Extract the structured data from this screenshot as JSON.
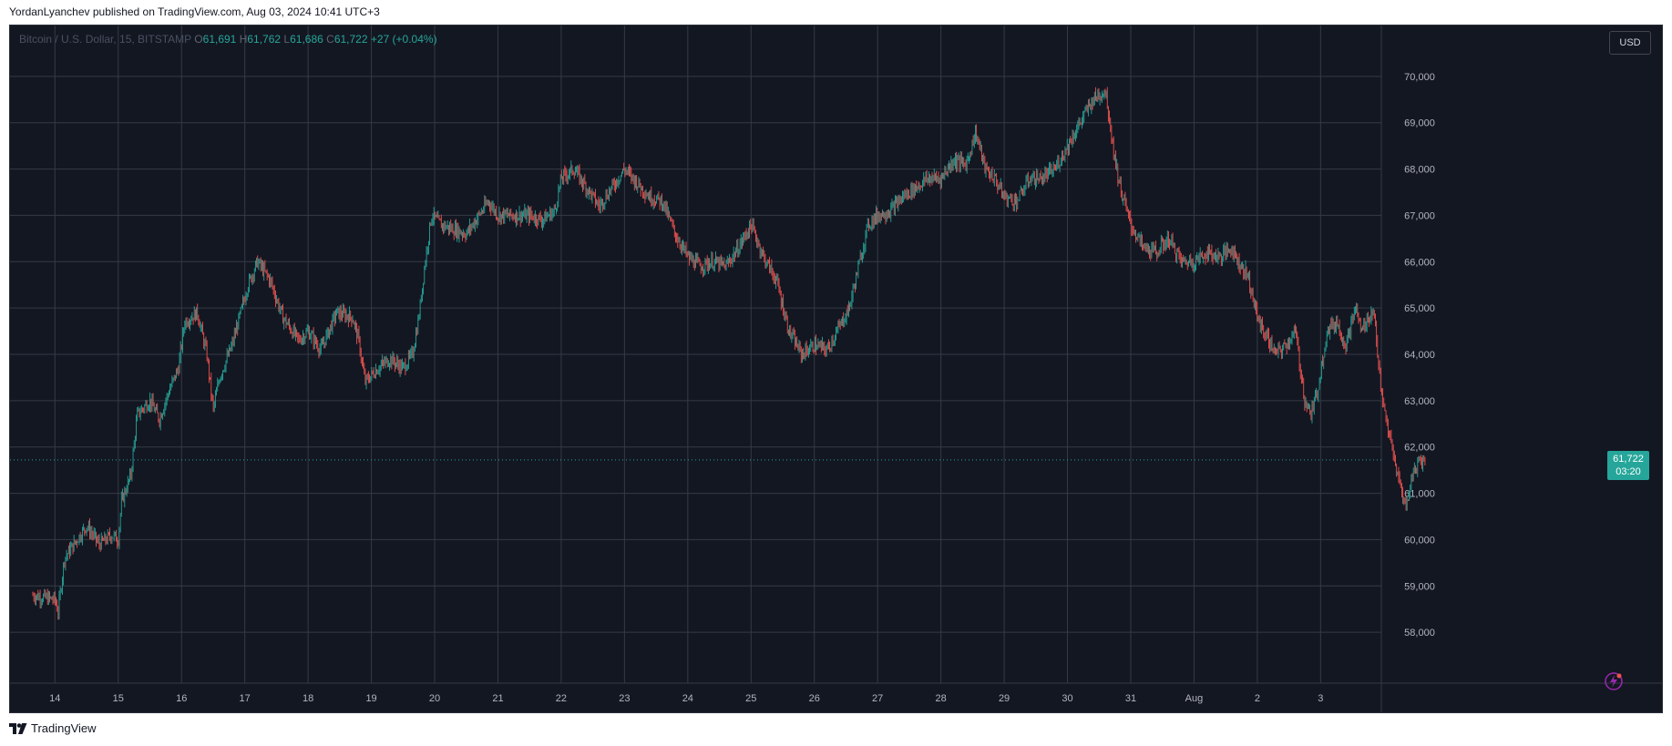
{
  "caption": "YordanLyanchev published on TradingView.com, Aug 03, 2024 10:41 UTC+3",
  "brand": "TradingView",
  "currency_button": "USD",
  "legend": {
    "symbol": "Bitcoin / U.S. Dollar, 15, BITSTAMP",
    "o_label": "O",
    "o": "61,691",
    "h_label": "H",
    "h": "61,762",
    "l_label": "L",
    "l": "61,686",
    "c_label": "C",
    "c": "61,722",
    "change": "+27 (+0.04%)"
  },
  "last_price": {
    "value": "61,722",
    "countdown": "03:20"
  },
  "colors": {
    "background": "#131722",
    "grid": "#363a45",
    "up": "#26a69a",
    "down": "#ef5350",
    "text": "#d1d4dc"
  },
  "icons": [
    "tradingview-logo-icon",
    "lightning-icon"
  ],
  "chart_data": {
    "type": "candlestick",
    "symbol": "Bitcoin / U.S. Dollar",
    "interval": "15",
    "exchange": "BITSTAMP",
    "ylim": [
      57000,
      71000
    ],
    "y_ticks": [
      "58,000",
      "59,000",
      "60,000",
      "61,000",
      "62,000",
      "63,000",
      "64,000",
      "65,000",
      "66,000",
      "67,000",
      "68,000",
      "69,000",
      "70,000"
    ],
    "x_ticks": [
      "14",
      "15",
      "16",
      "17",
      "18",
      "19",
      "20",
      "21",
      "22",
      "23",
      "24",
      "25",
      "26",
      "27",
      "28",
      "29",
      "30",
      "31",
      "Aug",
      "2",
      "3"
    ],
    "x_range_days": [
      -0.35,
      20.6
    ],
    "grid": true,
    "last_value": 61722,
    "price_path": [
      [
        -0.35,
        58800
      ],
      [
        0.0,
        58700
      ],
      [
        0.05,
        58450
      ],
      [
        0.15,
        59600
      ],
      [
        0.35,
        60000
      ],
      [
        0.5,
        60300
      ],
      [
        0.7,
        59900
      ],
      [
        0.9,
        60100
      ],
      [
        1.0,
        60000
      ],
      [
        1.05,
        60800
      ],
      [
        1.2,
        61400
      ],
      [
        1.3,
        62700
      ],
      [
        1.5,
        63000
      ],
      [
        1.65,
        62600
      ],
      [
        1.8,
        63200
      ],
      [
        1.95,
        63700
      ],
      [
        2.05,
        64700
      ],
      [
        2.25,
        64900
      ],
      [
        2.4,
        64000
      ],
      [
        2.5,
        62800
      ],
      [
        2.6,
        63500
      ],
      [
        2.8,
        64200
      ],
      [
        3.05,
        65500
      ],
      [
        3.2,
        66000
      ],
      [
        3.4,
        65600
      ],
      [
        3.6,
        64800
      ],
      [
        3.85,
        64300
      ],
      [
        4.0,
        64500
      ],
      [
        4.2,
        64100
      ],
      [
        4.45,
        64900
      ],
      [
        4.7,
        64800
      ],
      [
        4.8,
        64300
      ],
      [
        4.9,
        63400
      ],
      [
        5.1,
        63700
      ],
      [
        5.3,
        63900
      ],
      [
        5.5,
        63700
      ],
      [
        5.65,
        64000
      ],
      [
        5.75,
        64800
      ],
      [
        5.85,
        66000
      ],
      [
        5.95,
        67000
      ],
      [
        6.1,
        66800
      ],
      [
        6.3,
        66700
      ],
      [
        6.5,
        66600
      ],
      [
        6.7,
        67000
      ],
      [
        6.85,
        67300
      ],
      [
        7.0,
        67000
      ],
      [
        7.2,
        67000
      ],
      [
        7.5,
        67000
      ],
      [
        7.7,
        66900
      ],
      [
        7.9,
        67100
      ],
      [
        8.0,
        67800
      ],
      [
        8.2,
        68000
      ],
      [
        8.4,
        67600
      ],
      [
        8.6,
        67200
      ],
      [
        8.8,
        67600
      ],
      [
        9.0,
        68000
      ],
      [
        9.2,
        67700
      ],
      [
        9.4,
        67400
      ],
      [
        9.6,
        67300
      ],
      [
        9.8,
        66600
      ],
      [
        10.0,
        66100
      ],
      [
        10.2,
        65900
      ],
      [
        10.4,
        66000
      ],
      [
        10.6,
        65900
      ],
      [
        10.8,
        66300
      ],
      [
        11.0,
        66800
      ],
      [
        11.2,
        66100
      ],
      [
        11.4,
        65600
      ],
      [
        11.6,
        64500
      ],
      [
        11.8,
        64000
      ],
      [
        12.0,
        64200
      ],
      [
        12.2,
        64100
      ],
      [
        12.4,
        64600
      ],
      [
        12.55,
        65000
      ],
      [
        12.7,
        65900
      ],
      [
        12.85,
        66800
      ],
      [
        13.0,
        67000
      ],
      [
        13.2,
        67100
      ],
      [
        13.4,
        67400
      ],
      [
        13.6,
        67600
      ],
      [
        13.8,
        67800
      ],
      [
        14.0,
        67800
      ],
      [
        14.2,
        68200
      ],
      [
        14.4,
        68100
      ],
      [
        14.55,
        68800
      ],
      [
        14.7,
        68000
      ],
      [
        14.85,
        67800
      ],
      [
        15.0,
        67400
      ],
      [
        15.2,
        67300
      ],
      [
        15.4,
        67800
      ],
      [
        15.6,
        67800
      ],
      [
        15.8,
        68000
      ],
      [
        16.0,
        68500
      ],
      [
        16.2,
        69000
      ],
      [
        16.4,
        69500
      ],
      [
        16.6,
        69700
      ],
      [
        16.75,
        68200
      ],
      [
        16.85,
        67500
      ],
      [
        17.0,
        66800
      ],
      [
        17.2,
        66300
      ],
      [
        17.4,
        66200
      ],
      [
        17.6,
        66500
      ],
      [
        17.8,
        66000
      ],
      [
        18.0,
        66000
      ],
      [
        18.2,
        66200
      ],
      [
        18.4,
        66100
      ],
      [
        18.6,
        66300
      ],
      [
        18.7,
        66000
      ],
      [
        18.85,
        65700
      ],
      [
        19.0,
        64800
      ],
      [
        19.1,
        64500
      ],
      [
        19.3,
        64000
      ],
      [
        19.45,
        64200
      ],
      [
        19.6,
        64500
      ],
      [
        19.75,
        63000
      ],
      [
        19.85,
        62700
      ],
      [
        19.95,
        63200
      ],
      [
        20.1,
        64500
      ],
      [
        20.25,
        64700
      ],
      [
        20.4,
        64200
      ],
      [
        20.55,
        65000
      ],
      [
        20.65,
        64500
      ],
      [
        20.75,
        64800
      ],
      [
        20.85,
        64900
      ],
      [
        20.95,
        63200
      ],
      [
        21.05,
        62500
      ],
      [
        21.15,
        61800
      ],
      [
        21.25,
        61200
      ],
      [
        21.35,
        60700
      ],
      [
        21.45,
        61400
      ],
      [
        21.55,
        61700
      ],
      [
        21.65,
        61722
      ]
    ]
  }
}
